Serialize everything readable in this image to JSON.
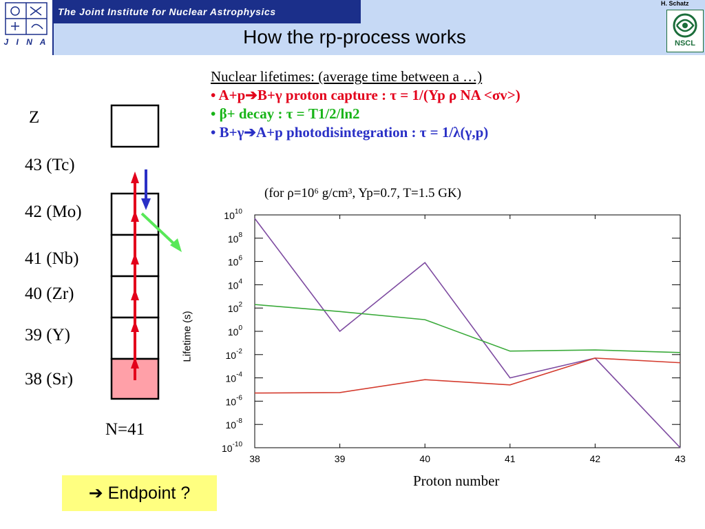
{
  "header": {
    "logo_text": "J I N A",
    "institute": "The Joint Institute for Nuclear Astrophysics",
    "title": "How the rp-process works",
    "author": "H. Schatz",
    "nscl_text": "NSCL"
  },
  "text_block": {
    "heading": "Nuclear lifetimes: (average time between a …)",
    "line1": "• A+p➔B+γ proton capture        : τ = 1/(Yp ρ NA <σv>)",
    "line2": "• β+ decay                                      : τ = T1/2/ln2",
    "line3": "• B+γ➔A+p photodisintegration : τ = 1/λ(γ,p)"
  },
  "conditions": "(for ρ=10⁶ g/cm³, Yp=0.7, T=1.5 GK)",
  "chain": {
    "z_label": "Z",
    "rows": [
      "43 (Tc)",
      "42 (Mo)",
      "41 (Nb)",
      "40 (Zr)",
      "39 (Y)",
      "38 (Sr)"
    ],
    "n_label": "N=41"
  },
  "endpoint": "➔ Endpoint ?",
  "colors": {
    "proton_capture": "#e3001b",
    "beta_decay": "#18b418",
    "photodisintegration": "#2a30c6",
    "purple_line": "#7d4aa0",
    "green_line": "#3aaa3a",
    "red_line": "#d43b2e",
    "sr_fill": "#ffa0a8"
  },
  "chart_data": {
    "type": "line",
    "xlabel": "Proton number",
    "ylabel": "Lifetime (s)",
    "yscale": "log",
    "xlim": [
      38,
      43
    ],
    "ylim": [
      1e-10,
      10000000000.0
    ],
    "x": [
      38,
      39,
      40,
      41,
      42,
      43
    ],
    "xticks": [
      "38",
      "39",
      "40",
      "41",
      "42",
      "43"
    ],
    "yticks": [
      "10-10",
      "10-8",
      "10-6",
      "10-4",
      "10-2",
      "100",
      "102",
      "104",
      "106",
      "108",
      "1010"
    ],
    "series": [
      {
        "color": "#7d4aa0",
        "values": [
          5000000000.0,
          1,
          800000.0,
          0.0001,
          0.005,
          1e-10
        ]
      },
      {
        "color": "#3aaa3a",
        "values": [
          200,
          50,
          10,
          0.02,
          0.025,
          0.015
        ]
      },
      {
        "color": "#d43b2e",
        "values": [
          5e-06,
          5.5e-06,
          7e-05,
          2.5e-05,
          0.005,
          0.002
        ]
      }
    ],
    "grid": false
  }
}
